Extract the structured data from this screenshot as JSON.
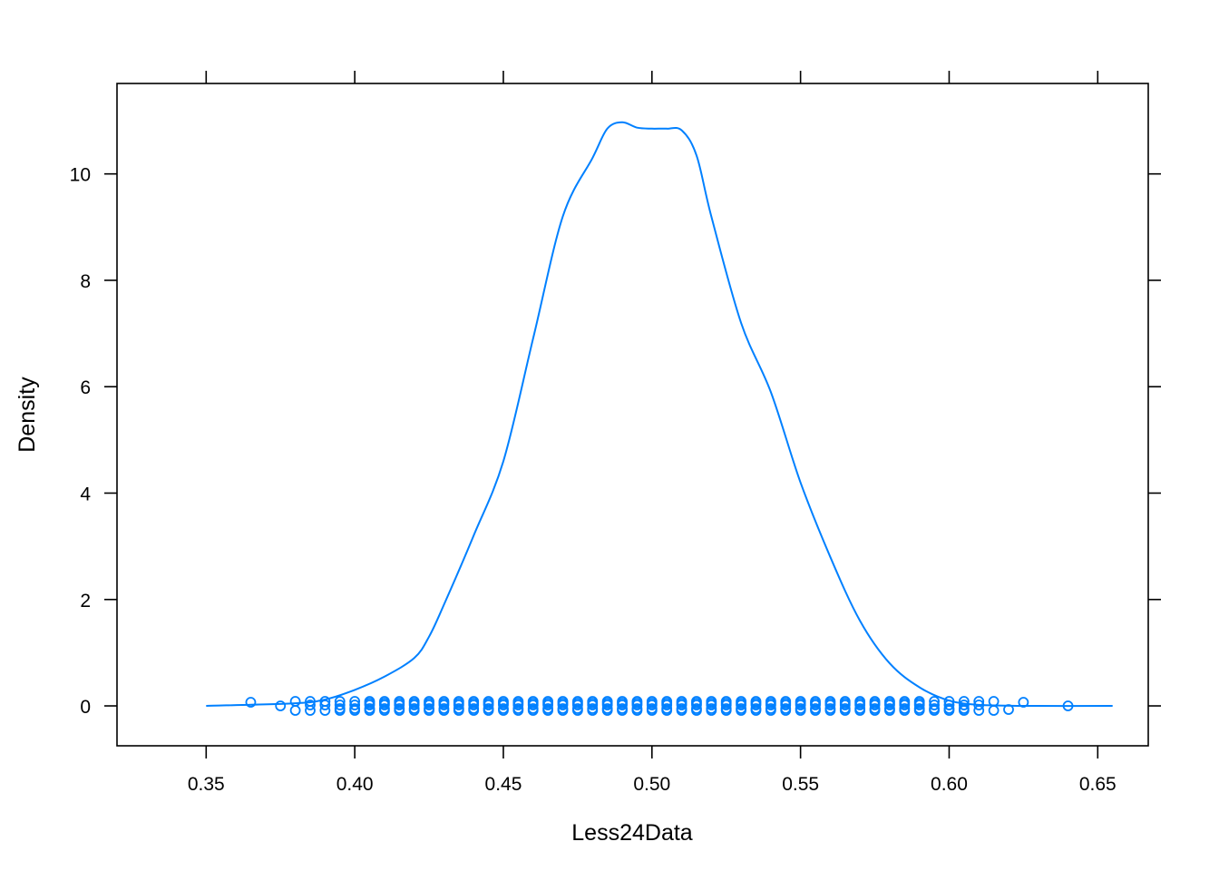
{
  "chart_data": {
    "type": "line",
    "xlabel": "Less24Data",
    "ylabel": "Density",
    "xlim": [
      0.32,
      0.667
    ],
    "ylim": [
      -0.75,
      11.7
    ],
    "x_ticks": [
      "0.35",
      "0.40",
      "0.45",
      "0.50",
      "0.55",
      "0.60",
      "0.65"
    ],
    "y_ticks": [
      "0",
      "2",
      "4",
      "6",
      "8",
      "10"
    ],
    "grid": false,
    "color": "#0080ff",
    "density": {
      "x": [
        0.35,
        0.38,
        0.39,
        0.4,
        0.41,
        0.42,
        0.425,
        0.43,
        0.44,
        0.45,
        0.46,
        0.47,
        0.48,
        0.485,
        0.49,
        0.495,
        0.5,
        0.505,
        0.51,
        0.515,
        0.52,
        0.53,
        0.54,
        0.55,
        0.56,
        0.57,
        0.58,
        0.59,
        0.6,
        0.61,
        0.625,
        0.655
      ],
      "y": [
        0.0,
        0.05,
        0.12,
        0.3,
        0.55,
        0.9,
        1.3,
        1.9,
        3.2,
        4.6,
        6.9,
        9.2,
        10.3,
        10.85,
        10.97,
        10.87,
        10.85,
        10.85,
        10.82,
        10.35,
        9.2,
        7.2,
        5.9,
        4.2,
        2.8,
        1.6,
        0.8,
        0.35,
        0.1,
        0.02,
        0.0,
        0.0
      ]
    },
    "rug": {
      "x": [
        0.365,
        0.375,
        0.38,
        0.385,
        0.39,
        0.395,
        0.4,
        0.405,
        0.41,
        0.415,
        0.42,
        0.425,
        0.43,
        0.435,
        0.44,
        0.445,
        0.45,
        0.455,
        0.46,
        0.465,
        0.47,
        0.475,
        0.48,
        0.485,
        0.49,
        0.495,
        0.5,
        0.505,
        0.51,
        0.515,
        0.52,
        0.525,
        0.53,
        0.535,
        0.54,
        0.545,
        0.55,
        0.555,
        0.56,
        0.565,
        0.57,
        0.575,
        0.58,
        0.585,
        0.59,
        0.595,
        0.6,
        0.605,
        0.61,
        0.615,
        0.62,
        0.625,
        0.64
      ],
      "count": [
        1,
        1,
        2,
        3,
        3,
        4,
        4,
        5,
        5,
        5,
        5,
        5,
        5,
        5,
        5,
        5,
        5,
        5,
        5,
        5,
        5,
        5,
        5,
        5,
        5,
        5,
        5,
        5,
        5,
        5,
        5,
        5,
        5,
        5,
        5,
        5,
        5,
        5,
        5,
        5,
        5,
        5,
        5,
        5,
        5,
        4,
        4,
        4,
        3,
        2,
        1,
        1,
        1
      ]
    }
  }
}
